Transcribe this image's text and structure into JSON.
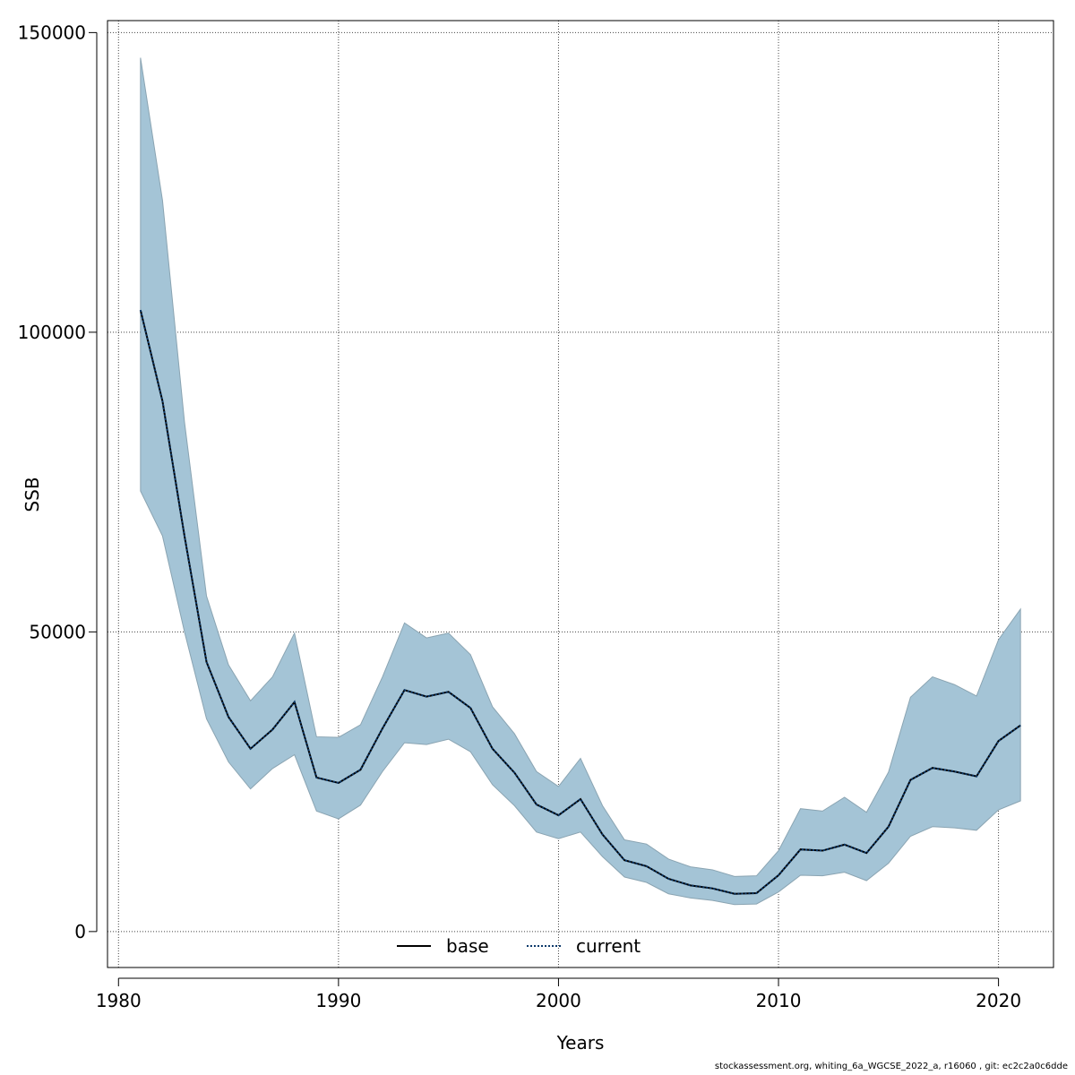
{
  "chart_data": {
    "type": "line",
    "title": "",
    "xlabel": "Years",
    "ylabel": "SSB",
    "xlim": [
      1979.5,
      2022.5
    ],
    "ylim": [
      -6000,
      152000
    ],
    "x_ticks": [
      1980,
      1990,
      2000,
      2010,
      2020
    ],
    "y_ticks": [
      0,
      50000,
      100000,
      150000
    ],
    "grid": true,
    "legend_position": "bottom-center",
    "x": [
      1981,
      1982,
      1983,
      1984,
      1985,
      1986,
      1987,
      1988,
      1989,
      1990,
      1991,
      1992,
      1993,
      1994,
      1995,
      1996,
      1997,
      1998,
      1999,
      2000,
      2001,
      2002,
      2003,
      2004,
      2005,
      2006,
      2007,
      2008,
      2009,
      2010,
      2011,
      2012,
      2013,
      2014,
      2015,
      2016,
      2017,
      2018,
      2019,
      2020,
      2021
    ],
    "band": {
      "color": "#a4c4d6",
      "edge_color": "#8aa4b2",
      "upper": [
        145800,
        122000,
        85000,
        56000,
        44500,
        38500,
        42500,
        49800,
        32500,
        32400,
        34500,
        42500,
        51500,
        49000,
        49800,
        46200,
        37500,
        33000,
        26700,
        24200,
        28900,
        21000,
        15300,
        14600,
        12100,
        10800,
        10300,
        9200,
        9300,
        13500,
        20500,
        20100,
        22400,
        19900,
        26600,
        39100,
        42500,
        41200,
        39300,
        48700,
        53800
      ],
      "lower": [
        73500,
        66000,
        50000,
        35500,
        28300,
        23800,
        27200,
        29500,
        20100,
        18800,
        21100,
        26700,
        31500,
        31200,
        32100,
        30000,
        24500,
        21000,
        16600,
        15500,
        16600,
        12500,
        9100,
        8200,
        6300,
        5600,
        5200,
        4500,
        4600,
        6600,
        9400,
        9300,
        9900,
        8500,
        11400,
        15900,
        17500,
        17300,
        16900,
        20300,
        21800
      ]
    },
    "series": [
      {
        "name": "base",
        "color": "#000000",
        "dash": "solid",
        "values": [
          103700,
          88500,
          66000,
          45000,
          35800,
          30500,
          33700,
          38300,
          25700,
          24800,
          27000,
          33900,
          40300,
          39200,
          40000,
          37300,
          30500,
          26500,
          21200,
          19400,
          22100,
          16200,
          11900,
          10900,
          8800,
          7700,
          7200,
          6300,
          6400,
          9400,
          13700,
          13500,
          14500,
          13100,
          17500,
          25300,
          27300,
          26700,
          25900,
          31800,
          34400
        ]
      },
      {
        "name": "current",
        "color": "#0d3a6b",
        "dash": "dotted",
        "values": [
          103700,
          88500,
          66000,
          45000,
          35800,
          30500,
          33700,
          38300,
          25700,
          24800,
          27000,
          33900,
          40300,
          39200,
          40000,
          37300,
          30500,
          26500,
          21200,
          19400,
          22100,
          16200,
          11900,
          10900,
          8800,
          7700,
          7200,
          6300,
          6400,
          9400,
          13700,
          13500,
          14500,
          13100,
          17500,
          25300,
          27300,
          26700,
          25900,
          31800,
          34400
        ]
      }
    ]
  },
  "footer": {
    "text": "stockassessment.org, whiting_6a_WGCSE_2022_a, r16060 , git: ec2c2a0c6dde"
  }
}
